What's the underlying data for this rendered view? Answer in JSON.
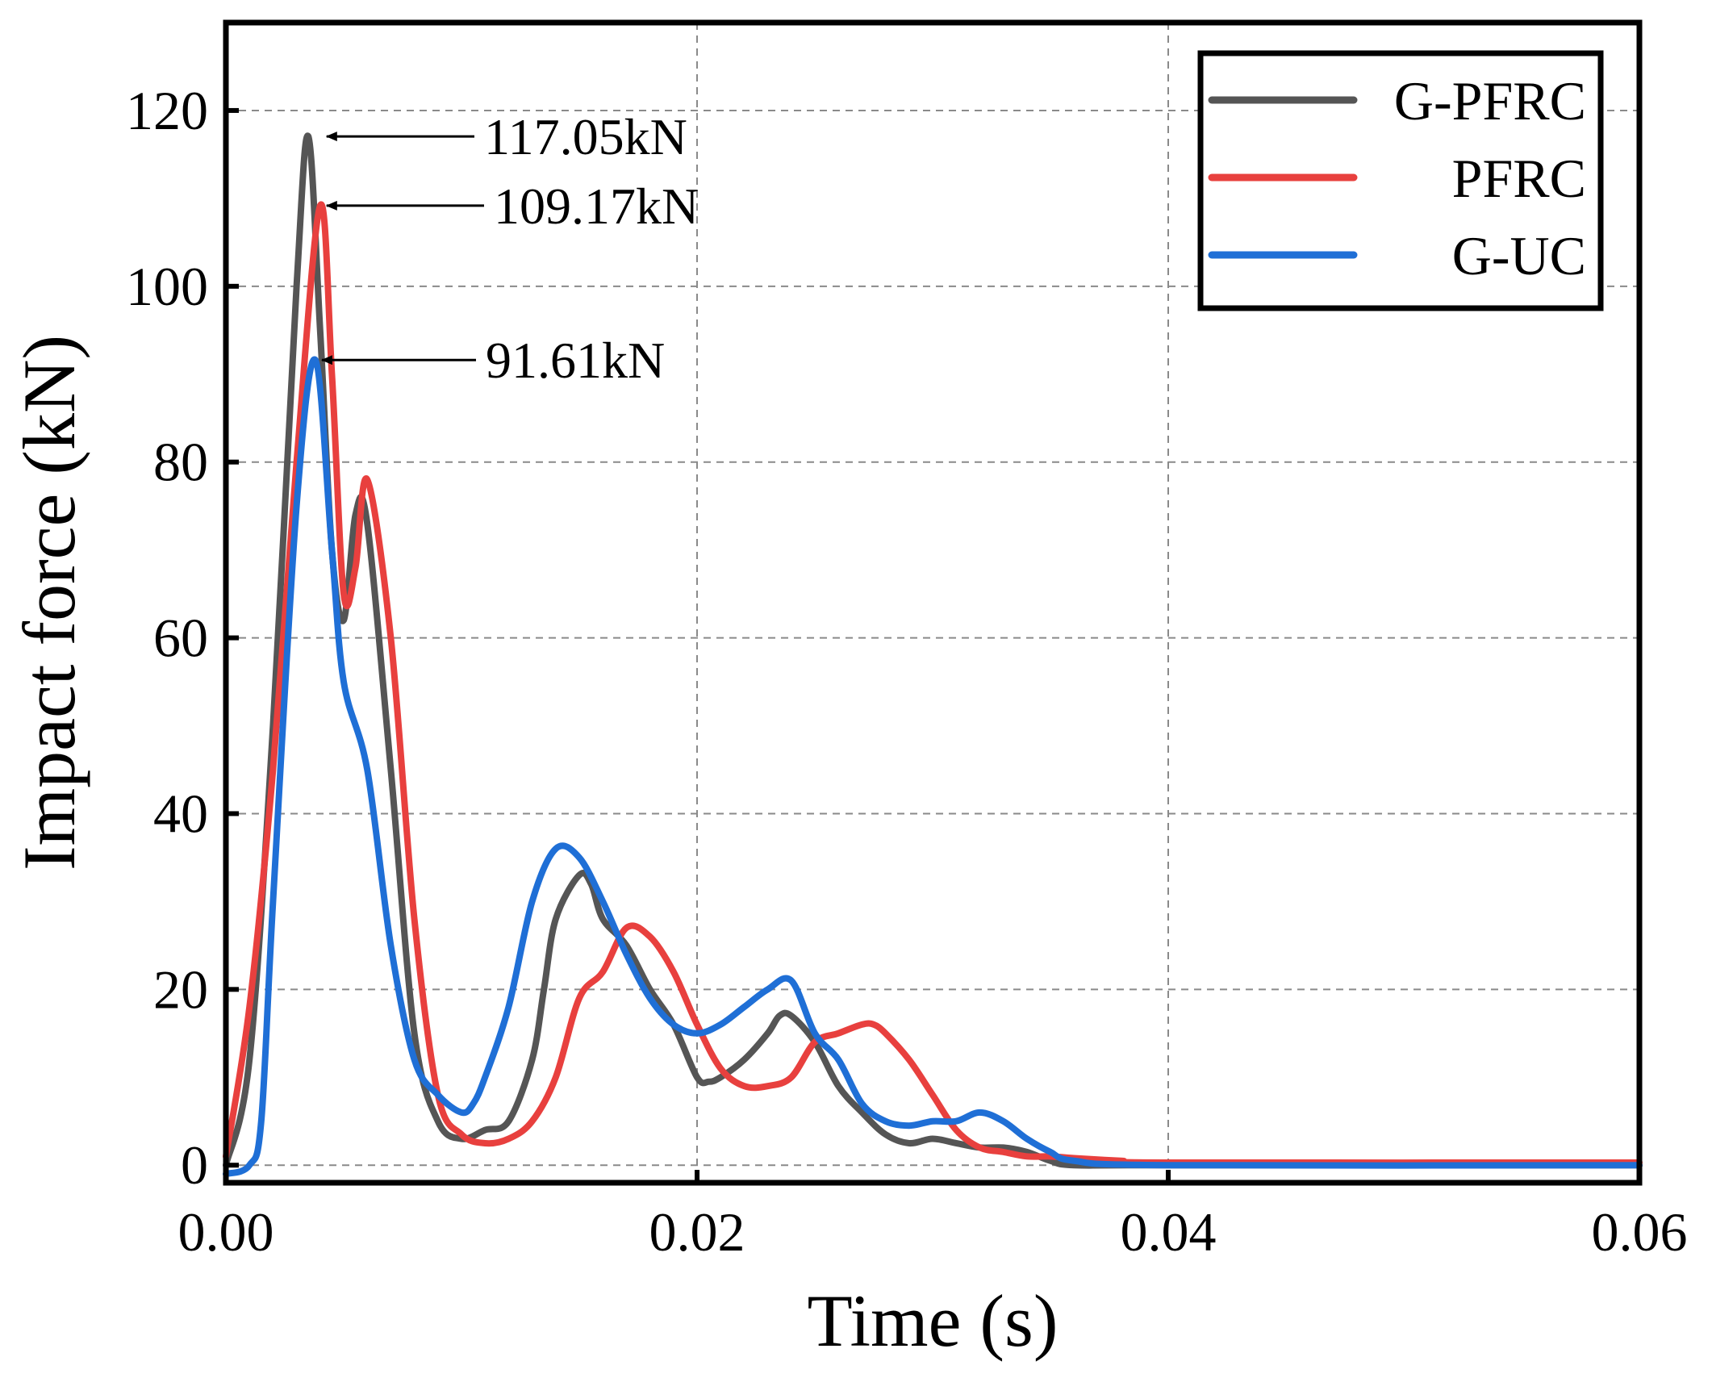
{
  "chart_data": {
    "type": "line",
    "title": "",
    "xlabel": "Time (s)",
    "ylabel": "Impact force (kN)",
    "xlim": [
      0,
      0.06
    ],
    "ylim": [
      -2,
      130
    ],
    "xticks": [
      0.0,
      0.02,
      0.04,
      0.06
    ],
    "xtick_labels": [
      "0.00",
      "0.02",
      "0.04",
      "0.06"
    ],
    "yticks": [
      0,
      20,
      40,
      60,
      80,
      100,
      120
    ],
    "ytick_labels": [
      "0",
      "20",
      "40",
      "60",
      "80",
      "100",
      "120"
    ],
    "grid": true,
    "legend_position": "top-right",
    "series": [
      {
        "name": "G-PFRC",
        "color": "#555555",
        "x": [
          0.0,
          0.001,
          0.002,
          0.003,
          0.0035,
          0.004,
          0.0045,
          0.005,
          0.0055,
          0.006,
          0.007,
          0.008,
          0.009,
          0.01,
          0.011,
          0.012,
          0.013,
          0.0135,
          0.014,
          0.015,
          0.0155,
          0.016,
          0.017,
          0.018,
          0.019,
          0.02,
          0.0205,
          0.021,
          0.022,
          0.023,
          0.0235,
          0.024,
          0.025,
          0.026,
          0.027,
          0.028,
          0.029,
          0.03,
          0.031,
          0.032,
          0.033,
          0.034,
          0.035,
          0.036,
          0.04,
          0.06
        ],
        "values": [
          0,
          12,
          50,
          100,
          117.05,
          95,
          70,
          62,
          74,
          73,
          45,
          15,
          5,
          3,
          4,
          5,
          12,
          20,
          28,
          33,
          32,
          28,
          25,
          20,
          16,
          10,
          9.5,
          10,
          12,
          15,
          17,
          17,
          14,
          9,
          6,
          3.5,
          2.5,
          3,
          2.5,
          2,
          2,
          1.5,
          0.5,
          0,
          0,
          0
        ]
      },
      {
        "name": "PFRC",
        "color": "#e8403e",
        "x": [
          0.0,
          0.001,
          0.002,
          0.003,
          0.004,
          0.0045,
          0.005,
          0.0055,
          0.006,
          0.007,
          0.008,
          0.009,
          0.01,
          0.011,
          0.012,
          0.013,
          0.014,
          0.015,
          0.016,
          0.017,
          0.018,
          0.019,
          0.02,
          0.021,
          0.022,
          0.023,
          0.024,
          0.025,
          0.026,
          0.027,
          0.0275,
          0.028,
          0.029,
          0.03,
          0.031,
          0.032,
          0.033,
          0.034,
          0.035,
          0.036,
          0.038,
          0.04,
          0.06
        ],
        "values": [
          1,
          18,
          45,
          80,
          109.17,
          90,
          65,
          68,
          78,
          60,
          28,
          8,
          3.5,
          2.5,
          3,
          5,
          10,
          19,
          22,
          27,
          26,
          22,
          16,
          11,
          9,
          9,
          10,
          14,
          15,
          16,
          16,
          15,
          12,
          8,
          4,
          2,
          1.5,
          1,
          1,
          0.8,
          0.5,
          0.3,
          0.3
        ]
      },
      {
        "name": "G-UC",
        "color": "#1f6fd6",
        "x": [
          0.0,
          0.001,
          0.0015,
          0.002,
          0.003,
          0.0038,
          0.0045,
          0.005,
          0.006,
          0.007,
          0.008,
          0.009,
          0.01,
          0.0105,
          0.011,
          0.012,
          0.013,
          0.014,
          0.015,
          0.016,
          0.017,
          0.018,
          0.019,
          0.02,
          0.021,
          0.022,
          0.023,
          0.024,
          0.025,
          0.026,
          0.027,
          0.028,
          0.029,
          0.03,
          0.031,
          0.032,
          0.033,
          0.034,
          0.035,
          0.036,
          0.04,
          0.06
        ],
        "values": [
          -1,
          0,
          5,
          30,
          75,
          91.61,
          70,
          55,
          45,
          25,
          12,
          8,
          6,
          7,
          10,
          18,
          30,
          36,
          35,
          30,
          24,
          19,
          16,
          15,
          16,
          18,
          20,
          21,
          15,
          12,
          7,
          5,
          4.5,
          5,
          5,
          6,
          5,
          3,
          1.5,
          0.5,
          0,
          0
        ]
      }
    ],
    "annotations": [
      {
        "text": "117.05kN",
        "x": 0.004,
        "y": 117.05
      },
      {
        "text": "109.17kN",
        "x": 0.004,
        "y": 109.17
      },
      {
        "text": "91.61kN",
        "x": 0.0038,
        "y": 91.61
      }
    ]
  }
}
